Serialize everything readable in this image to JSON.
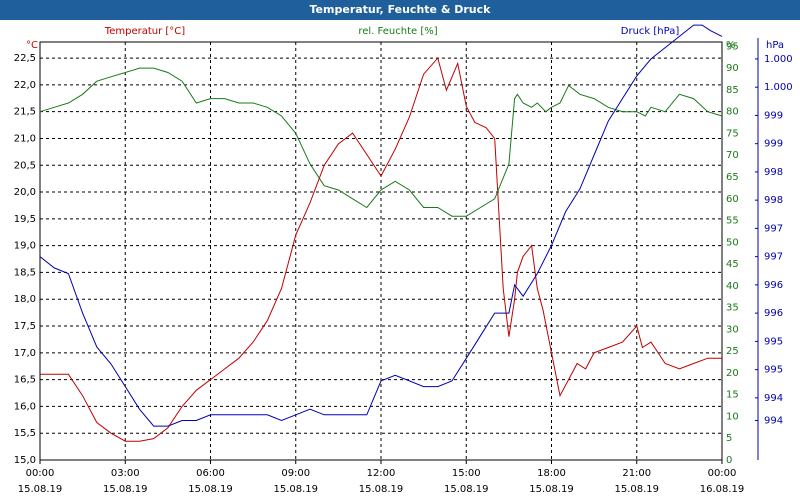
{
  "window": {
    "title": "Temperatur, Feuchte & Druck"
  },
  "colors": {
    "temperature": "#c00000",
    "humidity": "#1a7a1a",
    "pressure": "#0000b0",
    "title_bar": "#1f5f9c"
  },
  "chart_data": {
    "type": "line",
    "title": "Temperatur, Feuchte & Druck",
    "grid": true,
    "x_ticks": [
      {
        "time": "00:00",
        "date": "15.08.19"
      },
      {
        "time": "03:00",
        "date": "15.08.19"
      },
      {
        "time": "06:00",
        "date": "15.08.19"
      },
      {
        "time": "09:00",
        "date": "15.08.19"
      },
      {
        "time": "12:00",
        "date": "15.08.19"
      },
      {
        "time": "15:00",
        "date": "15.08.19"
      },
      {
        "time": "18:00",
        "date": "15.08.19"
      },
      {
        "time": "21:00",
        "date": "15.08.19"
      },
      {
        "time": "00:00",
        "date": "16.08.19"
      }
    ],
    "axes": {
      "left": {
        "unit_label": "°C",
        "min": 15.0,
        "max": 22.8,
        "ticks": [
          "15,0",
          "15,5",
          "16,0",
          "16,5",
          "17,0",
          "17,5",
          "18,0",
          "18,5",
          "19,0",
          "19,5",
          "20,0",
          "20,5",
          "21,0",
          "21,5",
          "22,0",
          "22,5"
        ]
      },
      "right1": {
        "unit_label": "%",
        "min": 0,
        "max": 96,
        "ticks": [
          "0",
          "5",
          "10",
          "15",
          "20",
          "25",
          "30",
          "35",
          "40",
          "45",
          "50",
          "55",
          "60",
          "65",
          "70",
          "75",
          "80",
          "85",
          "90",
          "95"
        ]
      },
      "right2": {
        "unit_label": "hPa",
        "min": 993.2,
        "max": 1000.6,
        "ticks": [
          "994",
          "994",
          "995",
          "995",
          "996",
          "996",
          "997",
          "997",
          "998",
          "998",
          "999",
          "999",
          "1.000",
          "1.000"
        ]
      }
    },
    "legend": [
      "Temperatur [°C]",
      "rel. Feuchte [%]",
      "Druck [hPa]"
    ],
    "series": [
      {
        "name": "Temperatur [°C]",
        "axis": "left",
        "x": [
          0,
          0.5,
          1,
          1.5,
          2,
          2.5,
          3,
          3.5,
          4,
          4.5,
          5,
          5.5,
          6,
          6.5,
          7,
          7.5,
          8,
          8.5,
          9,
          9.5,
          10,
          10.5,
          11,
          11.5,
          12,
          12.5,
          13,
          13.5,
          14,
          14.3,
          14.7,
          15,
          15.3,
          15.7,
          16,
          16.3,
          16.5,
          16.7,
          16.8,
          17,
          17.3,
          17.5,
          17.7,
          18,
          18.3,
          18.6,
          18.9,
          19.2,
          19.5,
          20,
          20.5,
          21,
          21.2,
          21.5,
          22,
          22.5,
          23,
          23.5,
          24
        ],
        "y": [
          16.6,
          16.6,
          16.6,
          16.2,
          15.7,
          15.5,
          15.35,
          15.35,
          15.4,
          15.6,
          16.0,
          16.3,
          16.5,
          16.7,
          16.9,
          17.2,
          17.6,
          18.2,
          19.2,
          19.8,
          20.5,
          20.9,
          21.1,
          20.7,
          20.3,
          20.8,
          21.4,
          22.2,
          22.5,
          21.9,
          22.4,
          21.6,
          21.3,
          21.2,
          21.0,
          18.2,
          17.3,
          18.0,
          18.5,
          18.8,
          19.0,
          18.2,
          17.8,
          17.0,
          16.2,
          16.5,
          16.8,
          16.7,
          17.0,
          17.1,
          17.2,
          17.5,
          17.1,
          17.2,
          16.8,
          16.7,
          16.8,
          16.9,
          16.9
        ]
      },
      {
        "name": "rel. Feuchte [%]",
        "axis": "right1",
        "x": [
          0,
          0.5,
          1,
          1.5,
          2,
          2.5,
          3,
          3.5,
          4,
          4.5,
          5,
          5.5,
          6,
          6.5,
          7,
          7.5,
          8,
          8.5,
          9,
          9.5,
          10,
          10.5,
          11,
          11.5,
          12,
          12.5,
          13,
          13.5,
          14,
          14.5,
          15,
          15.5,
          16,
          16.5,
          16.7,
          16.8,
          17,
          17.3,
          17.5,
          17.8,
          18,
          18.3,
          18.6,
          19,
          19.5,
          20,
          20.5,
          21,
          21.3,
          21.5,
          22,
          22.5,
          23,
          23.5,
          24
        ],
        "y": [
          80,
          81,
          82,
          84,
          87,
          88,
          89,
          90,
          90,
          89,
          87,
          82,
          83,
          83,
          82,
          82,
          81,
          79,
          75,
          68,
          63,
          62,
          60,
          58,
          62,
          64,
          62,
          58,
          58,
          56,
          56,
          58,
          60,
          68,
          83,
          84,
          82,
          81,
          82,
          80,
          81,
          82,
          86,
          84,
          83,
          81,
          80,
          80,
          79,
          81,
          80,
          84,
          83,
          80,
          79
        ]
      },
      {
        "name": "Druck [hPa]",
        "axis": "right2",
        "x": [
          0,
          0.5,
          1,
          1.5,
          2,
          2.5,
          3,
          3.5,
          4,
          4.5,
          5,
          5.5,
          6,
          6.5,
          7,
          7.5,
          8,
          8.5,
          9,
          9.5,
          10,
          10.5,
          11,
          11.5,
          12,
          12.5,
          13,
          13.5,
          14,
          14.5,
          15,
          15.5,
          16,
          16.5,
          16.7,
          17,
          17.5,
          18,
          18.5,
          19,
          19.5,
          20,
          20.5,
          21,
          21.5,
          22,
          22.5,
          23,
          23.3,
          23.6,
          24
        ],
        "y": [
          996.8,
          996.6,
          996.5,
          995.8,
          995.2,
          994.9,
          994.5,
          994.1,
          993.8,
          993.8,
          993.9,
          993.9,
          994.0,
          994.0,
          994.0,
          994.0,
          994.0,
          993.9,
          994.0,
          994.1,
          994.0,
          994.0,
          994.0,
          994.0,
          994.6,
          994.7,
          994.6,
          994.5,
          994.5,
          994.6,
          995.0,
          995.4,
          995.8,
          995.8,
          996.3,
          996.1,
          996.5,
          997.0,
          997.6,
          998.0,
          998.6,
          999.2,
          999.6,
          1000.0,
          1000.3,
          1000.5,
          1000.7,
          1000.9,
          1000.9,
          1000.8,
          1000.7
        ]
      }
    ]
  }
}
